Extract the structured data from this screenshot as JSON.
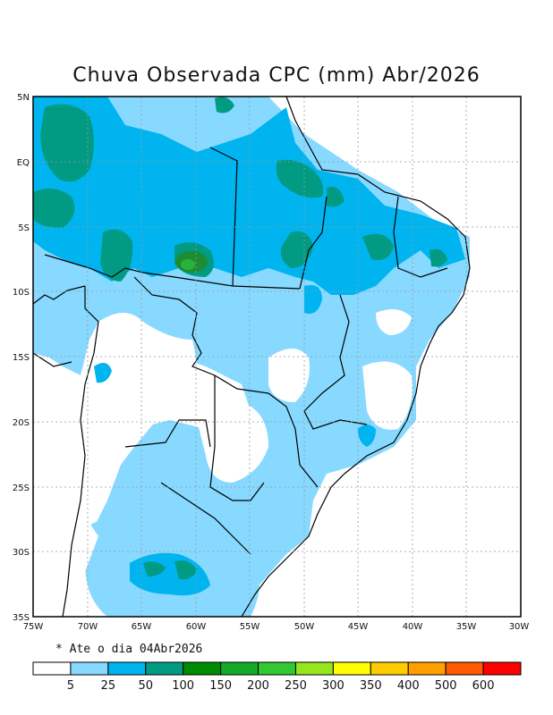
{
  "title": "Chuva Observada CPC (mm) Abr/2026",
  "note": "* Ate o dia 04Abr2026",
  "lat_ticks": [
    "5N",
    "EQ",
    "5S",
    "10S",
    "15S",
    "20S",
    "25S",
    "30S",
    "35S"
  ],
  "lon_ticks": [
    "75W",
    "70W",
    "65W",
    "60W",
    "55W",
    "50W",
    "45W",
    "40W",
    "35W",
    "30W"
  ],
  "legend": {
    "labels": [
      "5",
      "25",
      "50",
      "100",
      "150",
      "200",
      "250",
      "300",
      "350",
      "400",
      "500",
      "600"
    ],
    "colors": [
      "#ffffff",
      "#87d9ff",
      "#00b4f0",
      "#009b82",
      "#008c00",
      "#14aa28",
      "#32c832",
      "#96e61e",
      "#ffff00",
      "#ffcc00",
      "#ffa000",
      "#ff5a00",
      "#ff0000"
    ]
  },
  "palette": {
    "c25": "#87d9ff",
    "c50": "#00b4f0",
    "c100": "#009b82",
    "c150": "#1e8c32",
    "c200": "#28b43c"
  }
}
